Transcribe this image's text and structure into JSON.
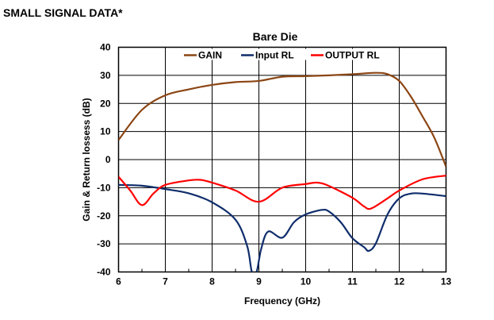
{
  "heading": "SMALL SIGNAL DATA*",
  "chart_data": {
    "type": "line",
    "title": "Bare Die",
    "xlabel": "Frequency (GHz)",
    "ylabel": "Gain & Return lossess (dB)",
    "xlim": [
      6,
      13
    ],
    "ylim": [
      -40,
      40
    ],
    "xticks": [
      6,
      7,
      8,
      9,
      10,
      11,
      12,
      13
    ],
    "yticks": [
      40,
      30,
      20,
      10,
      0,
      -10,
      -20,
      -30,
      -40
    ],
    "grid": true,
    "legend_position": "top-center",
    "series": [
      {
        "name": "GAIN",
        "color": "#8B4513",
        "x": [
          6,
          6.5,
          7,
          7.5,
          8,
          8.5,
          9,
          9.5,
          10,
          10.5,
          11,
          11.5,
          11.75,
          12,
          12.25,
          12.5,
          12.75,
          13
        ],
        "y": [
          7,
          17.7,
          22.9,
          25,
          26.6,
          27.6,
          28,
          29.5,
          29.7,
          30,
          30.4,
          30.9,
          30.4,
          28,
          22.4,
          15.3,
          7.8,
          -2.5
        ]
      },
      {
        "name": "Input RL",
        "color": "#0F2D6B",
        "x": [
          6,
          6.5,
          7,
          7.5,
          8,
          8.5,
          8.75,
          8.85,
          8.95,
          9.05,
          9.2,
          9.5,
          9.75,
          10,
          10.35,
          10.5,
          10.75,
          11,
          11.25,
          11.35,
          11.5,
          11.75,
          12,
          12.25,
          12.5,
          13
        ],
        "y": [
          -9,
          -9.3,
          -10.5,
          -12,
          -15.2,
          -21.4,
          -30.8,
          -40,
          -40,
          -31.7,
          -25.6,
          -27.8,
          -22.3,
          -19.5,
          -17.9,
          -18.5,
          -22.3,
          -28,
          -31.2,
          -32.5,
          -29.8,
          -19.5,
          -13.8,
          -12.1,
          -12.1,
          -13
        ]
      },
      {
        "name": "OUTPUT RL",
        "color": "#FF0000",
        "x": [
          6,
          6.25,
          6.5,
          6.75,
          7,
          7.5,
          7.75,
          8,
          8.5,
          9,
          9.5,
          10,
          10.25,
          10.5,
          11,
          11.25,
          11.4,
          11.75,
          12,
          12.5,
          13
        ],
        "y": [
          -6.1,
          -11,
          -16.2,
          -12,
          -9,
          -7.4,
          -7.2,
          -8.2,
          -11,
          -15,
          -10,
          -8.7,
          -8.2,
          -9.4,
          -13.6,
          -16.7,
          -17.4,
          -13.8,
          -11,
          -7,
          -5.7
        ]
      }
    ]
  }
}
